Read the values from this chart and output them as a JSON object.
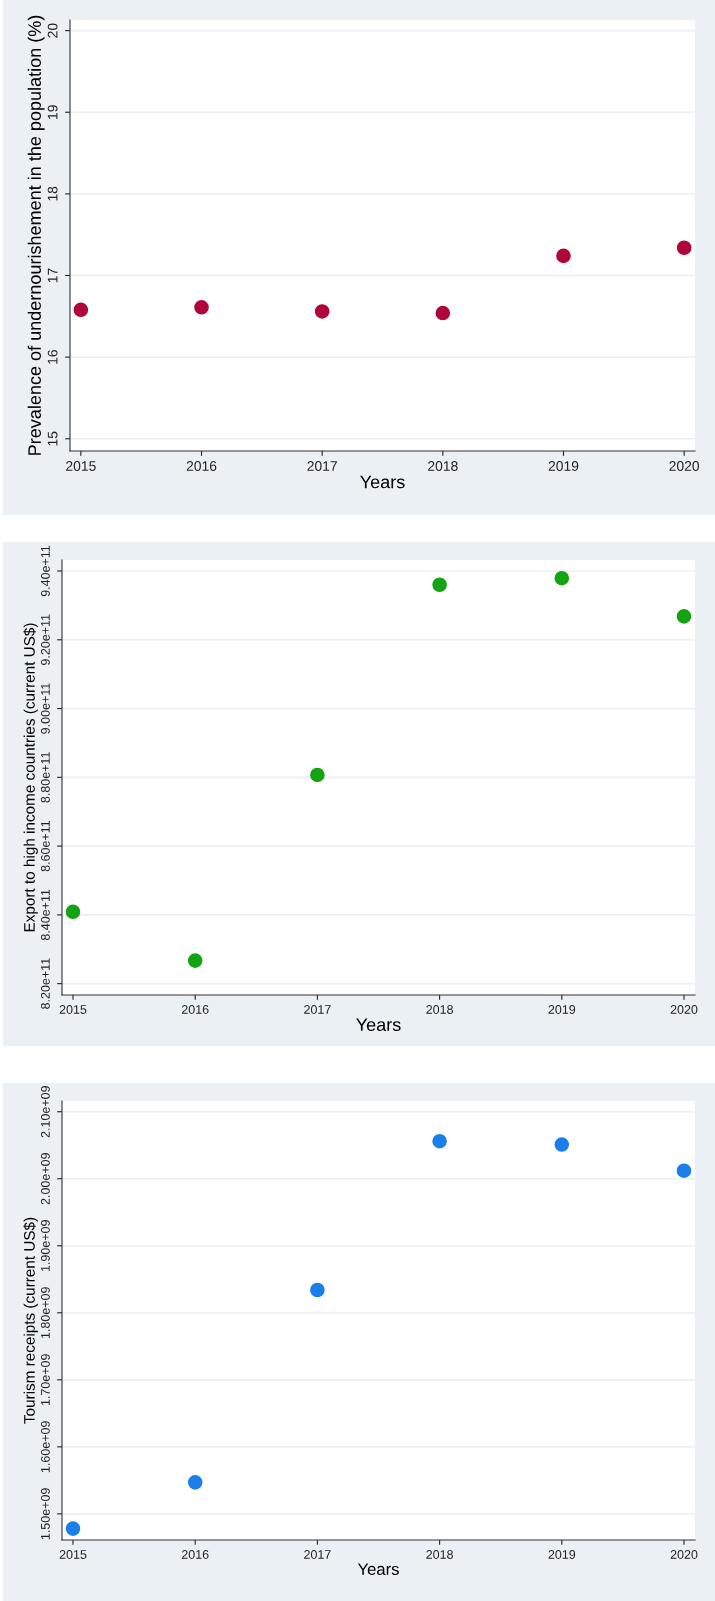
{
  "chart_data": [
    {
      "type": "scatter",
      "xlabel": "Years",
      "ylabel": "Prevalence of undernourishement in the population (%)",
      "x": [
        2015,
        2016,
        2017,
        2018,
        2019,
        2020
      ],
      "series": [
        {
          "color": "#b0063a",
          "values": [
            16.58,
            16.61,
            16.56,
            16.54,
            17.24,
            17.34
          ]
        }
      ],
      "xlim": [
        2014.91,
        2020.09
      ],
      "xticks": [
        2015,
        2016,
        2017,
        2018,
        2019,
        2020
      ],
      "ylim": [
        14.85,
        20.13
      ],
      "yticks": [
        15,
        16,
        17,
        18,
        19,
        20
      ],
      "grid": "y",
      "marker": "circle"
    },
    {
      "type": "scatter",
      "xlabel": "Years",
      "ylabel": "Export to high income countries (current US$)",
      "x": [
        2015,
        2016,
        2017,
        2018,
        2019,
        2020
      ],
      "series": [
        {
          "color": "#13a313",
          "values": [
            840900000000,
            826700000000,
            880700000000,
            936000000000,
            937900000000,
            926800000000
          ]
        }
      ],
      "xlim": [
        2014.91,
        2020.09
      ],
      "xticks": [
        2015,
        2016,
        2017,
        2018,
        2019,
        2020
      ],
      "ylim": [
        816700000000,
        943200000000
      ],
      "yticks": [
        {
          "value": 820000000000,
          "label": "8.20e+11"
        },
        {
          "value": 840000000000,
          "label": "8.40e+11"
        },
        {
          "value": 860000000000,
          "label": "8.60e+11"
        },
        {
          "value": 880000000000,
          "label": "8.80e+11"
        },
        {
          "value": 900000000000,
          "label": "9.00e+11"
        },
        {
          "value": 920000000000,
          "label": "9.20e+11"
        },
        {
          "value": 940000000000,
          "label": "9.40e+11"
        }
      ],
      "grid": "y",
      "marker": "circle"
    },
    {
      "type": "scatter",
      "xlabel": "Years",
      "ylabel": "Tourism receipts (current US$)",
      "x": [
        2015,
        2016,
        2017,
        2018,
        2019,
        2020
      ],
      "series": [
        {
          "color": "#1a7fe8",
          "values": [
            1478000000,
            1547000000,
            1834000000,
            2056000000,
            2051000000,
            2012000000
          ]
        }
      ],
      "xlim": [
        2014.91,
        2020.09
      ],
      "xticks": [
        2015,
        2016,
        2017,
        2018,
        2019,
        2020
      ],
      "ylim": [
        1461000000,
        2116000000
      ],
      "yticks": [
        {
          "value": 1500000000,
          "label": "1.50e+09"
        },
        {
          "value": 1600000000,
          "label": "1.60e+09"
        },
        {
          "value": 1700000000,
          "label": "1.70e+09"
        },
        {
          "value": 1800000000,
          "label": "1.80e+09"
        },
        {
          "value": 1900000000,
          "label": "1.90e+09"
        },
        {
          "value": 2000000000,
          "label": "2.00e+09"
        },
        {
          "value": 2100000000,
          "label": "2.10e+09"
        }
      ],
      "grid": "y",
      "marker": "circle"
    }
  ]
}
